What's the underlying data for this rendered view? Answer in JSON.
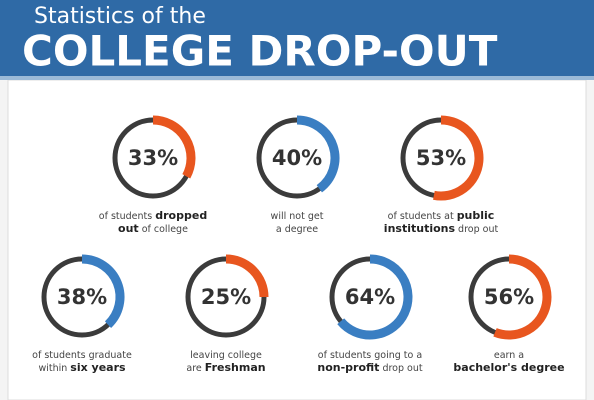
{
  "header": {
    "subtitle": "Statistics of the",
    "title": "COLLEGE DROP-OUT"
  },
  "stats": [
    {
      "value": 33,
      "label": "33%",
      "color": "#e8561f",
      "caption": [
        [
          {
            "text": "of students "
          },
          {
            "text": "dropped",
            "bold": true
          }
        ],
        [
          {
            "text": "out",
            "bold": true
          },
          {
            "text": " of college"
          }
        ]
      ]
    },
    {
      "value": 40,
      "label": "40%",
      "color": "#3a7ec2",
      "caption": [
        [
          {
            "text": "will not get"
          }
        ],
        [
          {
            "text": "a degree"
          }
        ]
      ]
    },
    {
      "value": 53,
      "label": "53%",
      "color": "#e8561f",
      "caption": [
        [
          {
            "text": "of students at "
          },
          {
            "text": "public",
            "bold": true
          }
        ],
        [
          {
            "text": "institutions",
            "bold": true
          },
          {
            "text": " drop out"
          }
        ]
      ]
    },
    {
      "value": 38,
      "label": "38%",
      "color": "#3a7ec2",
      "caption": [
        [
          {
            "text": "of students graduate"
          }
        ],
        [
          {
            "text": "within "
          },
          {
            "text": "six years",
            "bold": true
          }
        ]
      ]
    },
    {
      "value": 25,
      "label": "25%",
      "color": "#e8561f",
      "caption": [
        [
          {
            "text": "leaving college"
          }
        ],
        [
          {
            "text": "are "
          },
          {
            "text": "Freshman",
            "bold": true
          }
        ]
      ]
    },
    {
      "value": 64,
      "label": "64%",
      "color": "#3a7ec2",
      "caption": [
        [
          {
            "text": "of students going to a"
          }
        ],
        [
          {
            "text": "non-profit",
            "bold": true
          },
          {
            "text": " drop out"
          }
        ]
      ]
    },
    {
      "value": 56,
      "label": "56%",
      "color": "#e8561f",
      "caption": [
        [
          {
            "text": "earn a"
          }
        ],
        [
          {
            "text": "bachelor's degree",
            "bold": true
          }
        ]
      ]
    }
  ]
}
